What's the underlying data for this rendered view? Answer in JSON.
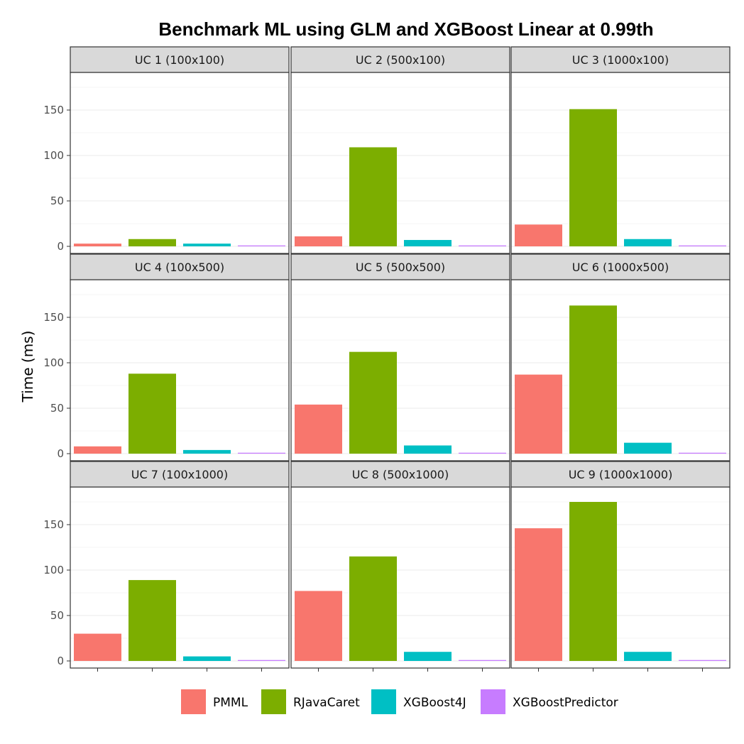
{
  "chart_data": {
    "type": "bar",
    "title": "Benchmark ML using GLM and XGBoost Linear at 0.99th",
    "xlabel": "",
    "ylabel": "Time (ms)",
    "ylim": [
      0,
      180
    ],
    "y_ticks": [
      0,
      50,
      100,
      150
    ],
    "grid": true,
    "legend_position": "bottom",
    "categories": [
      "PMML",
      "RJavaCaret",
      "XGBoost4J",
      "XGBoostPredictor"
    ],
    "colors": {
      "PMML": "#F8766D",
      "RJavaCaret": "#7CAE00",
      "XGBoost4J": "#00BFC4",
      "XGBoostPredictor": "#C77CFF"
    },
    "panels": [
      {
        "label": "UC 1 (100x100)",
        "values": [
          3,
          8,
          3,
          1
        ]
      },
      {
        "label": "UC 2 (500x100)",
        "values": [
          11,
          109,
          7,
          1
        ]
      },
      {
        "label": "UC 3 (1000x100)",
        "values": [
          24,
          151,
          8,
          1
        ]
      },
      {
        "label": "UC 4 (100x500)",
        "values": [
          8,
          88,
          4,
          1
        ]
      },
      {
        "label": "UC 5 (500x500)",
        "values": [
          54,
          112,
          9,
          1
        ]
      },
      {
        "label": "UC 6 (1000x500)",
        "values": [
          87,
          163,
          12,
          1
        ]
      },
      {
        "label": "UC 7 (100x1000)",
        "values": [
          30,
          89,
          5,
          1
        ]
      },
      {
        "label": "UC 8 (500x1000)",
        "values": [
          77,
          115,
          10,
          1
        ]
      },
      {
        "label": "UC 9 (1000x1000)",
        "values": [
          146,
          175,
          10,
          1
        ]
      }
    ]
  }
}
